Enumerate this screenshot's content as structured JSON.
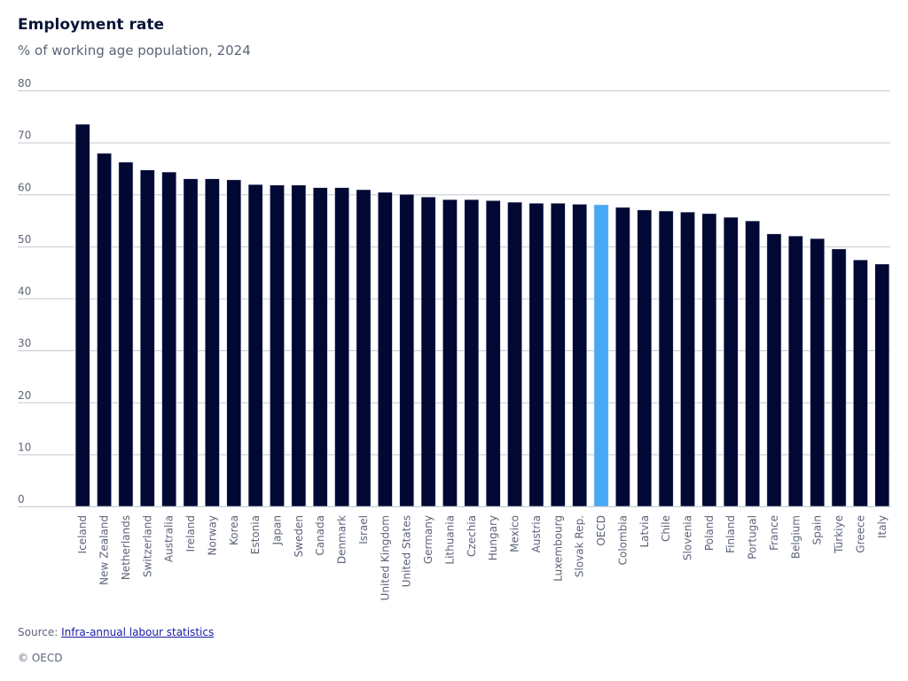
{
  "header": {
    "title": "Employment rate",
    "subtitle": "% of working age population, 2024"
  },
  "footer": {
    "source_prefix": "Source: ",
    "source_link": "Infra-annual labour statistics",
    "copyright": "© OECD"
  },
  "colors": {
    "bar": "#000833",
    "highlight": "#47a8f6"
  },
  "chart_data": {
    "type": "bar",
    "title": "Employment rate",
    "subtitle": "% of working age population, 2024",
    "xlabel": "",
    "ylabel": "",
    "ylim": [
      0,
      80
    ],
    "yticks": [
      0,
      10,
      20,
      30,
      40,
      50,
      60,
      70,
      80
    ],
    "grid": true,
    "highlight_category": "OECD",
    "categories": [
      "Iceland",
      "New Zealand",
      "Netherlands",
      "Switzerland",
      "Australia",
      "Ireland",
      "Norway",
      "Korea",
      "Estonia",
      "Japan",
      "Sweden",
      "Canada",
      "Denmark",
      "Israel",
      "United Kingdom",
      "United States",
      "Germany",
      "Lithuania",
      "Czechia",
      "Hungary",
      "Mexico",
      "Austria",
      "Luxembourg",
      "Slovak Rep.",
      "OECD",
      "Colombia",
      "Latvia",
      "Chile",
      "Slovenia",
      "Poland",
      "Finland",
      "Portugal",
      "France",
      "Belgium",
      "Spain",
      "Türkiye",
      "Greece",
      "Italy"
    ],
    "values": [
      73.5,
      67.9,
      66.2,
      64.7,
      64.3,
      63.0,
      63.0,
      62.8,
      61.9,
      61.8,
      61.8,
      61.3,
      61.3,
      60.9,
      60.4,
      60.0,
      59.5,
      59.0,
      59.0,
      58.8,
      58.5,
      58.3,
      58.3,
      58.1,
      58.0,
      57.5,
      57.0,
      56.8,
      56.6,
      56.3,
      55.6,
      54.9,
      52.4,
      52.0,
      51.5,
      49.5,
      47.4,
      46.6
    ]
  }
}
